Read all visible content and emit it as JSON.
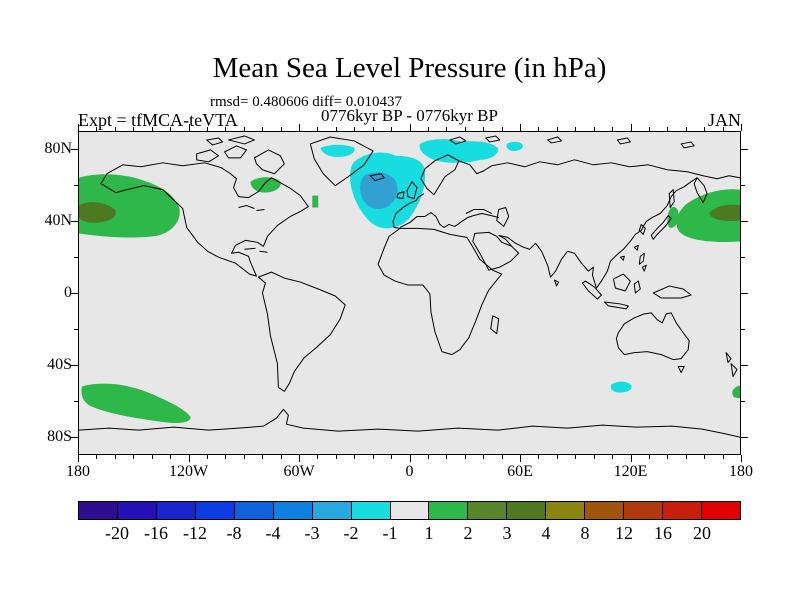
{
  "header": {
    "title": "Mean Sea Level Pressure (in hPa)",
    "stats_line": "rmsd= 0.480606 diff= 0.010437",
    "case_line": "0776kyr BP - 0776kyr BP",
    "experiment_label": "Expt = tfMCA-teVTA",
    "month_label": "JAN"
  },
  "map": {
    "background": "#e7e7e7",
    "coastline_color": "#000000",
    "x_axis": {
      "tick_labels": [
        "180",
        "120W",
        "60W",
        "0",
        "60E",
        "120E",
        "180"
      ],
      "tick_lons": [
        -180,
        -120,
        -60,
        0,
        60,
        120,
        180
      ],
      "minor_step_deg": 10
    },
    "y_axis": {
      "tick_labels": [
        "80N",
        "40N",
        "0",
        "40S",
        "80S"
      ],
      "tick_lats": [
        80,
        40,
        0,
        -40,
        -80
      ],
      "minor_step_deg": 20
    }
  },
  "colors": {
    "green": "#2eb84a",
    "dark_olive": "#4d7a20",
    "cyan": "#17dde0",
    "core_blue": "#33a0d4",
    "map_gray": "#e7e7e7"
  },
  "chart_data": {
    "type": "heatmap",
    "subtype": "filled-contour anomaly map on cylindrical-equidistant world projection",
    "title": "Mean Sea Level Pressure (in hPa)",
    "units": "hPa",
    "rmsd": 0.480606,
    "diff": 0.010437,
    "cases": "0776kyr BP - 0776kyr BP",
    "month": "JAN",
    "experiment": "Expt = tfMCA-teVTA",
    "lon_range": [
      -180,
      180
    ],
    "lat_range": [
      -90,
      90
    ],
    "contour_levels": [
      -20,
      -16,
      -12,
      -8,
      -4,
      -3,
      -2,
      -1,
      1,
      2,
      3,
      4,
      8,
      12,
      16,
      20
    ],
    "colorbar_labels": [
      "-20",
      "-16",
      "-12",
      "-8",
      "-4",
      "-3",
      "-2",
      "-1",
      "1",
      "2",
      "3",
      "4",
      "8",
      "12",
      "16",
      "20"
    ],
    "palette": [
      "#2e0d8e",
      "#2410b4",
      "#1a24cc",
      "#0f3ce0",
      "#0f62dc",
      "#0f80e0",
      "#29a8e0",
      "#17dde0",
      "#e7e7e7",
      "#2eb84a",
      "#55862b",
      "#4d7a20",
      "#8a8410",
      "#a0540e",
      "#b03a10",
      "#c81e0c",
      "#e10000"
    ],
    "legend_position": "bottom horizontal colorbar",
    "anomaly_regions": [
      {
        "name": "north-pacific-east-of-dateline",
        "sign": "positive",
        "approx_location": "35N-58N, 180-145W",
        "value_hpa": "1 to 4",
        "core": "dark olive patch ~40N at the 180 edge"
      },
      {
        "name": "hudson-bay-area",
        "sign": "positive",
        "approx_location": "55N-62N, 95W-75W",
        "value_hpa": "1 to 2"
      },
      {
        "name": "greenland-interior",
        "sign": "negative",
        "approx_location": "70N-76N, 45W-25W",
        "value_hpa": "-1 to -2"
      },
      {
        "name": "north-atlantic-iceland-uk",
        "sign": "negative",
        "approx_location": "40N-72N, 40W-0",
        "value_hpa": "-1 to -3",
        "core": "deeper blue core around Iceland/UK"
      },
      {
        "name": "scandinavia-barents",
        "sign": "negative",
        "approx_location": "66N-80N, 5E-55E",
        "value_hpa": "-1 to -2"
      },
      {
        "name": "northwest-pacific-east-of-japan",
        "sign": "positive",
        "approx_location": "28N-58N, 140E-180",
        "value_hpa": "1 to 4",
        "core": "dark olive patch ~42N near the 180 edge"
      },
      {
        "name": "south-pacific-high-latitude",
        "sign": "positive",
        "approx_location": "50S-65S, 180-145W",
        "value_hpa": "1 to 2"
      },
      {
        "name": "south-of-australia",
        "sign": "negative",
        "approx_location": "52S-58S, 145E-155E",
        "value_hpa": "-1 to -2"
      }
    ]
  }
}
